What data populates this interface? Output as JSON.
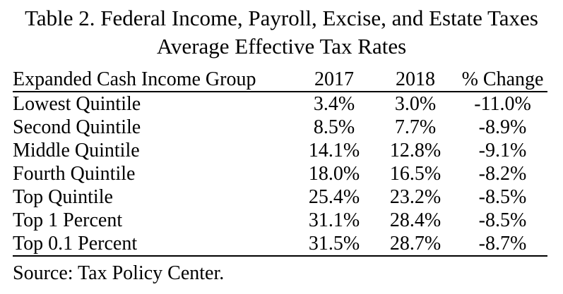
{
  "table": {
    "title_line1": "Table 2. Federal Income, Payroll, Excise, and Estate Taxes",
    "title_line2": "Average Effective Tax Rates",
    "columns": [
      "Expanded Cash Income Group",
      "2017",
      "2018",
      "% Change"
    ],
    "rows": [
      {
        "group": "Lowest Quintile",
        "y2017": "3.4%",
        "y2018": "3.0%",
        "change": "-11.0%"
      },
      {
        "group": "Second Quintile",
        "y2017": "8.5%",
        "y2018": "7.7%",
        "change": "-8.9%"
      },
      {
        "group": "Middle Quintile",
        "y2017": "14.1%",
        "y2018": "12.8%",
        "change": "-9.1%"
      },
      {
        "group": "Fourth Quintile",
        "y2017": "18.0%",
        "y2018": "16.5%",
        "change": "-8.2%"
      },
      {
        "group": "Top Quintile",
        "y2017": "25.4%",
        "y2018": "23.2%",
        "change": "-8.5%"
      },
      {
        "group": "Top 1 Percent",
        "y2017": "31.1%",
        "y2018": "28.4%",
        "change": "-8.5%"
      },
      {
        "group": "Top 0.1 Percent",
        "y2017": "31.5%",
        "y2018": "28.7%",
        "change": "-8.7%"
      }
    ],
    "source": "Source: Tax Policy Center.",
    "colors": {
      "text": "#000000",
      "background": "#ffffff",
      "rule": "#000000"
    }
  },
  "chart_data": {
    "type": "table",
    "title": "Table 2. Federal Income, Payroll, Excise, and Estate Taxes — Average Effective Tax Rates",
    "columns": [
      "Expanded Cash Income Group",
      "2017",
      "2018",
      "% Change"
    ],
    "rows": [
      [
        "Lowest Quintile",
        3.4,
        3.0,
        -11.0
      ],
      [
        "Second Quintile",
        8.5,
        7.7,
        -8.9
      ],
      [
        "Middle Quintile",
        14.1,
        12.8,
        -9.1
      ],
      [
        "Fourth Quintile",
        18.0,
        16.5,
        -8.2
      ],
      [
        "Top Quintile",
        25.4,
        23.2,
        -8.5
      ],
      [
        "Top 1 Percent",
        31.1,
        28.4,
        -8.5
      ],
      [
        "Top 0.1 Percent",
        31.5,
        28.7,
        -8.7
      ]
    ],
    "units": "percent",
    "source": "Tax Policy Center"
  }
}
